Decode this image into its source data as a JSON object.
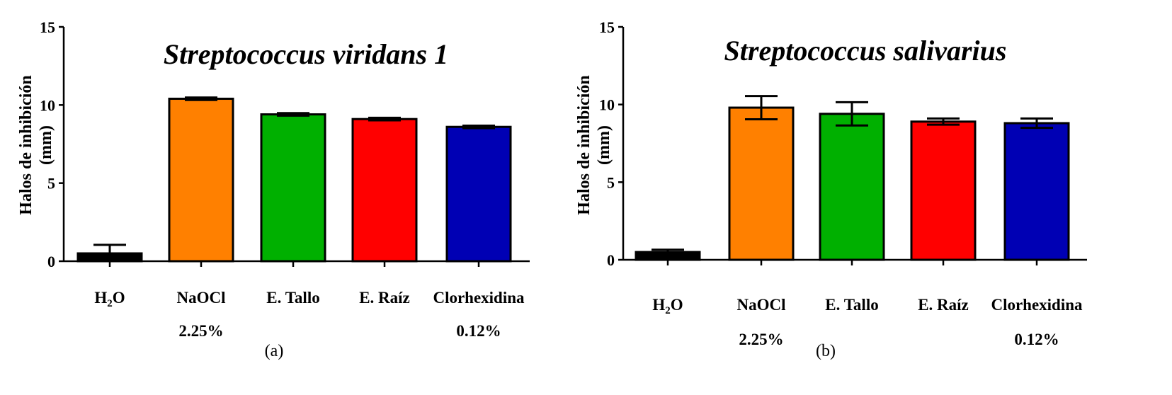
{
  "chart_data": [
    {
      "type": "bar",
      "title": "Streptococcus viridans 1",
      "ylabel": "Halos de inhibición (mm)",
      "xlabel": "",
      "ylim": [
        0,
        15
      ],
      "yticks": [
        "0",
        "5",
        "10",
        "15"
      ],
      "grid": false,
      "categories": [
        {
          "label": "H",
          "sub": "2",
          "after": "O"
        },
        {
          "label": "NaOCl",
          "line2": "2.25%"
        },
        {
          "label": "E. Tallo"
        },
        {
          "label": "E. Raíz"
        },
        {
          "label": "Clorhexidina",
          "line2": "0.12%"
        }
      ],
      "values": [
        0.5,
        10.4,
        9.4,
        9.1,
        8.6
      ],
      "errors": [
        0.55,
        0.08,
        0.08,
        0.08,
        0.08
      ],
      "colors": [
        "#000000",
        "#ff8000",
        "#00b000",
        "#ff0000",
        "#0000b4"
      ],
      "caption": "(a)"
    },
    {
      "type": "bar",
      "title": "Streptococcus salivarius",
      "ylabel": "Halos de inhibición (mm)",
      "xlabel": "",
      "ylim": [
        0,
        15
      ],
      "yticks": [
        "0",
        "5",
        "10",
        "15"
      ],
      "grid": false,
      "categories": [
        {
          "label": "H",
          "sub": "2",
          "after": "O"
        },
        {
          "label": "NaOCl",
          "line2": "2.25%"
        },
        {
          "label": "E. Tallo"
        },
        {
          "label": "E. Raíz"
        },
        {
          "label": "Clorhexidina",
          "line2": "0.12%"
        }
      ],
      "values": [
        0.5,
        9.8,
        9.4,
        8.9,
        8.8
      ],
      "errors": [
        0.15,
        0.75,
        0.75,
        0.2,
        0.3
      ],
      "colors": [
        "#000000",
        "#ff8000",
        "#00b000",
        "#ff0000",
        "#0000b4"
      ],
      "caption": "(b)"
    }
  ]
}
